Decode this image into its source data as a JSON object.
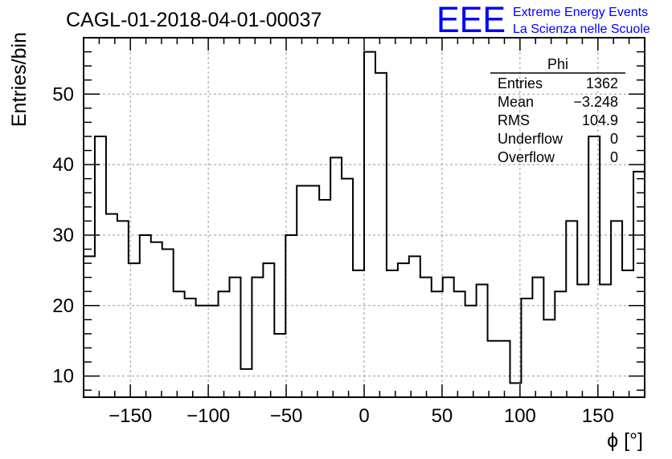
{
  "title": "CAGL-01-2018-04-01-00037",
  "logo": {
    "mark": "EEE",
    "line1": "Extreme Energy Events",
    "line2": "La Scienza nelle Scuole",
    "color": "#0000ff"
  },
  "stats": {
    "name": "Phi",
    "rows": [
      {
        "label": "Entries",
        "value": "1362"
      },
      {
        "label": "Mean",
        "value": "−3.248"
      },
      {
        "label": "RMS",
        "value": "104.9"
      },
      {
        "label": "Underflow",
        "value": "0"
      },
      {
        "label": "Overflow",
        "value": "0"
      }
    ]
  },
  "chart_data": {
    "type": "bar",
    "style": "step-histogram",
    "xlabel": "ϕ [°]",
    "ylabel": "Entries/bin",
    "xlim": [
      -180,
      180
    ],
    "ylim": [
      7,
      58
    ],
    "grid": true,
    "bin_width": 7.2,
    "xticks": [
      -150,
      -100,
      -50,
      0,
      50,
      100,
      150
    ],
    "xtick_labels": [
      "−150",
      "−100",
      "−50",
      "0",
      "50",
      "100",
      "150"
    ],
    "yticks": [
      10,
      20,
      30,
      40,
      50
    ],
    "ytick_labels": [
      "10",
      "20",
      "30",
      "40",
      "50"
    ],
    "values": [
      27,
      44,
      33,
      32,
      26,
      30,
      29,
      28,
      22,
      21,
      20,
      20,
      22,
      24,
      11,
      24,
      26,
      16,
      30,
      37,
      37,
      35,
      41,
      38,
      25,
      56,
      53,
      25,
      26,
      27,
      24,
      22,
      24,
      22,
      20,
      23,
      15,
      15,
      9,
      21,
      24,
      18,
      22,
      32,
      23,
      44,
      23,
      32,
      25,
      39
    ]
  }
}
